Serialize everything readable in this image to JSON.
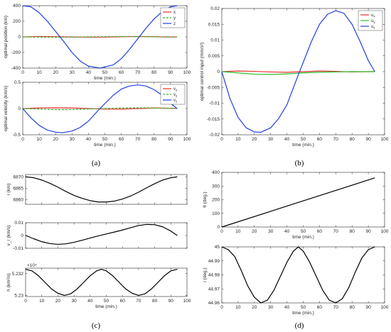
{
  "captions": [
    "(a)",
    "(b)",
    "(c)",
    "(d)"
  ],
  "chart_data": [
    {
      "id": "a1",
      "type": "line",
      "xlabel": "time (min.)",
      "ylabel": "optimal position (km)",
      "xlim": [
        0,
        100
      ],
      "ylim": [
        -400,
        400
      ],
      "xticks": [
        0,
        10,
        20,
        30,
        40,
        50,
        60,
        70,
        80,
        90,
        100
      ],
      "yticks": [
        -400,
        -200,
        0,
        200,
        400
      ],
      "legend": "top-right",
      "series": [
        {
          "name": "x",
          "color": "#e8312e",
          "dash": "solid",
          "x": [
            0,
            10,
            20,
            30,
            40,
            50,
            60,
            70,
            80,
            90,
            94
          ],
          "y": [
            0,
            5,
            3,
            -1,
            -4,
            -2,
            2,
            5,
            3,
            -1,
            0
          ]
        },
        {
          "name": "y",
          "color": "#2dbb2d",
          "dash": "dashed",
          "x": [
            0,
            10,
            20,
            30,
            40,
            50,
            60,
            70,
            80,
            90,
            94
          ],
          "y": [
            0,
            -3,
            -5,
            -3,
            0,
            3,
            5,
            3,
            0,
            -3,
            0
          ]
        },
        {
          "name": "z",
          "color": "#1f3fe0",
          "dash": "solid",
          "x": [
            0,
            5,
            10,
            15,
            20,
            25,
            30,
            35,
            40,
            47,
            55,
            60,
            65,
            70,
            75,
            80,
            85,
            90,
            94
          ],
          "y": [
            400,
            385,
            310,
            200,
            70,
            -60,
            -200,
            -310,
            -375,
            -400,
            -360,
            -280,
            -160,
            -25,
            110,
            230,
            325,
            385,
            400
          ]
        }
      ]
    },
    {
      "id": "a2",
      "type": "line",
      "xlabel": "time (min.)",
      "ylabel": "optimal velocity (km/s)",
      "xlim": [
        0,
        100
      ],
      "ylim": [
        -0.5,
        0.5
      ],
      "xticks": [
        0,
        10,
        20,
        30,
        40,
        50,
        60,
        70,
        80,
        90,
        100
      ],
      "yticks": [
        -0.5,
        0,
        0.5
      ],
      "legend": "top-right",
      "series": [
        {
          "name": "v_x",
          "color": "#e8312e",
          "dash": "solid",
          "x": [
            0,
            10,
            20,
            30,
            40,
            50,
            60,
            70,
            80,
            90,
            94
          ],
          "y": [
            0,
            0.01,
            0.015,
            0.01,
            0.0,
            -0.01,
            -0.01,
            0.0,
            0.01,
            0.005,
            0
          ]
        },
        {
          "name": "v_y",
          "color": "#2dbb2d",
          "dash": "dashed",
          "x": [
            0,
            10,
            20,
            30,
            40,
            50,
            60,
            70,
            80,
            90,
            94
          ],
          "y": [
            0,
            -0.01,
            -0.02,
            -0.02,
            -0.01,
            0.0,
            0.01,
            0.015,
            0.01,
            0.005,
            0
          ]
        },
        {
          "name": "v_z",
          "color": "#1f3fe0",
          "dash": "solid",
          "x": [
            0,
            5,
            10,
            15,
            20,
            24,
            30,
            35,
            40,
            47,
            55,
            60,
            65,
            70,
            75,
            80,
            85,
            90,
            94
          ],
          "y": [
            0,
            -0.18,
            -0.32,
            -0.41,
            -0.45,
            -0.46,
            -0.43,
            -0.36,
            -0.24,
            0.0,
            0.25,
            0.37,
            0.43,
            0.45,
            0.43,
            0.36,
            0.25,
            0.1,
            0.0
          ]
        }
      ]
    },
    {
      "id": "b",
      "type": "line",
      "xlabel": "time (min.)",
      "ylabel": "optimal control input (mm/s²)",
      "xlim": [
        0,
        100
      ],
      "ylim": [
        -0.02,
        0.02
      ],
      "xticks": [
        0,
        10,
        20,
        30,
        40,
        50,
        60,
        70,
        80,
        90,
        100
      ],
      "yticks": [
        -0.02,
        -0.015,
        -0.01,
        -0.005,
        0,
        0.005,
        0.01,
        0.015,
        0.02
      ],
      "legend": "top-right",
      "series": [
        {
          "name": "u_x",
          "color": "#e8312e",
          "dash": "solid",
          "x": [
            0,
            10,
            20,
            30,
            40,
            50,
            60,
            70,
            80,
            90,
            94
          ],
          "y": [
            0,
            0.0002,
            0.0001,
            -0.0001,
            -0.0002,
            0.0,
            0.0002,
            0.0001,
            -0.0001,
            0.0,
            0
          ]
        },
        {
          "name": "u_y",
          "color": "#2dbb2d",
          "dash": "solid",
          "x": [
            0,
            10,
            20,
            30,
            40,
            50,
            60,
            70,
            80,
            90,
            94
          ],
          "y": [
            0,
            -0.0004,
            -0.0008,
            -0.0009,
            -0.0007,
            -0.0004,
            -0.0002,
            -0.0001,
            0.0,
            0.0,
            0
          ]
        },
        {
          "name": "u_z",
          "color": "#1f3fe0",
          "dash": "solid",
          "x": [
            0,
            5,
            10,
            15,
            20,
            24,
            30,
            35,
            40,
            47,
            55,
            60,
            65,
            70,
            75,
            80,
            85,
            90,
            94
          ],
          "y": [
            0,
            -0.0085,
            -0.0145,
            -0.0178,
            -0.0191,
            -0.0192,
            -0.0178,
            -0.0148,
            -0.0105,
            -0.001,
            0.0095,
            0.015,
            0.0182,
            0.0193,
            0.0185,
            0.015,
            0.0095,
            0.0035,
            0.0
          ]
        }
      ]
    },
    {
      "id": "c1",
      "type": "line",
      "xlabel": "",
      "ylabel": "r (km)",
      "xlim": [
        0,
        100
      ],
      "ylim": [
        6858,
        6871
      ],
      "xticks": [
        0,
        10,
        20,
        30,
        40,
        50,
        60,
        70,
        80,
        90,
        100
      ],
      "yticks": [
        6860,
        6865,
        6870
      ],
      "series": [
        {
          "color": "#000000",
          "dash": "solid",
          "x": [
            0,
            5,
            10,
            15,
            20,
            25,
            30,
            35,
            40,
            45,
            50,
            55,
            60,
            65,
            70,
            75,
            80,
            85,
            90,
            94
          ],
          "y": [
            6870,
            6869.6,
            6868.6,
            6867.2,
            6865.5,
            6863.6,
            6861.9,
            6860.6,
            6859.6,
            6859.0,
            6859.0,
            6859.4,
            6860.3,
            6861.6,
            6863.3,
            6865.2,
            6867.0,
            6868.6,
            6869.6,
            6870
          ]
        }
      ]
    },
    {
      "id": "c2",
      "type": "line",
      "xlabel": "",
      "ylabel": "v_r (km/s)",
      "xlim": [
        0,
        100
      ],
      "ylim": [
        -0.01,
        0.01
      ],
      "xticks": [
        0,
        10,
        20,
        30,
        40,
        50,
        60,
        70,
        80,
        90,
        100
      ],
      "yticks": [
        -0.01,
        0,
        0.01
      ],
      "series": [
        {
          "color": "#000000",
          "dash": "solid",
          "x": [
            0,
            5,
            10,
            15,
            20,
            25,
            30,
            35,
            40,
            45,
            50,
            55,
            60,
            65,
            70,
            75,
            80,
            85,
            90,
            94
          ],
          "y": [
            0,
            -0.0025,
            -0.0048,
            -0.0063,
            -0.0069,
            -0.0065,
            -0.0053,
            -0.0037,
            -0.002,
            -0.0003,
            0.0012,
            0.0027,
            0.0043,
            0.0061,
            0.0078,
            0.0087,
            0.0085,
            0.0068,
            0.0035,
            0.0
          ]
        }
      ]
    },
    {
      "id": "c3",
      "type": "line",
      "xlabel": "time (min.)",
      "ylabel": "h (km²/s)",
      "xlim": [
        0,
        100
      ],
      "ylim": [
        52299,
        52325
      ],
      "exponent_label": "×10⁴",
      "ytick_labels": [
        "5.23",
        "5.232"
      ],
      "yticks": [
        52300,
        52320
      ],
      "xticks": [
        0,
        10,
        20,
        30,
        40,
        50,
        60,
        70,
        80,
        90,
        100
      ],
      "series": [
        {
          "color": "#000000",
          "dash": "solid",
          "x": [
            0,
            4,
            8,
            12,
            16,
            20,
            24,
            28,
            32,
            36,
            40,
            44,
            47,
            50,
            54,
            58,
            62,
            66,
            70,
            74,
            78,
            82,
            86,
            90,
            94
          ],
          "y": [
            52324,
            52322.5,
            52318,
            52312,
            52306,
            52302,
            52300,
            52301.5,
            52306,
            52312,
            52318,
            52322.5,
            52324,
            52322.5,
            52318,
            52312,
            52306,
            52302,
            52300,
            52301.5,
            52306,
            52312,
            52318,
            52322.5,
            52324
          ]
        }
      ]
    },
    {
      "id": "d1",
      "type": "line",
      "xlabel": "time (min.)",
      "ylabel": "θ (deg.)",
      "xlim": [
        0,
        100
      ],
      "ylim": [
        0,
        400
      ],
      "xticks": [
        0,
        10,
        20,
        30,
        40,
        50,
        60,
        70,
        80,
        90,
        100
      ],
      "yticks": [
        0,
        100,
        200,
        300,
        400
      ],
      "series": [
        {
          "color": "#000000",
          "dash": "solid",
          "x": [
            0,
            94
          ],
          "y": [
            0,
            360
          ]
        }
      ]
    },
    {
      "id": "d2",
      "type": "line",
      "xlabel": "time (min.)",
      "ylabel": "i (deg.)",
      "xlim": [
        0,
        100
      ],
      "ylim": [
        44.96,
        45
      ],
      "xticks": [
        0,
        10,
        20,
        30,
        40,
        50,
        60,
        70,
        80,
        90,
        100
      ],
      "yticks": [
        44.96,
        44.97,
        44.98,
        44.99,
        45
      ],
      "series": [
        {
          "color": "#000000",
          "dash": "solid",
          "x": [
            0,
            4,
            8,
            12,
            16,
            20,
            24,
            28,
            32,
            36,
            40,
            44,
            47,
            50,
            54,
            58,
            62,
            66,
            70,
            74,
            78,
            82,
            86,
            90,
            94
          ],
          "y": [
            45,
            44.998,
            44.993,
            44.983,
            44.972,
            44.964,
            44.96,
            44.962,
            44.969,
            44.979,
            44.989,
            44.997,
            45,
            44.997,
            44.989,
            44.979,
            44.969,
            44.962,
            44.96,
            44.963,
            44.971,
            44.982,
            44.992,
            44.998,
            45
          ]
        }
      ]
    }
  ]
}
